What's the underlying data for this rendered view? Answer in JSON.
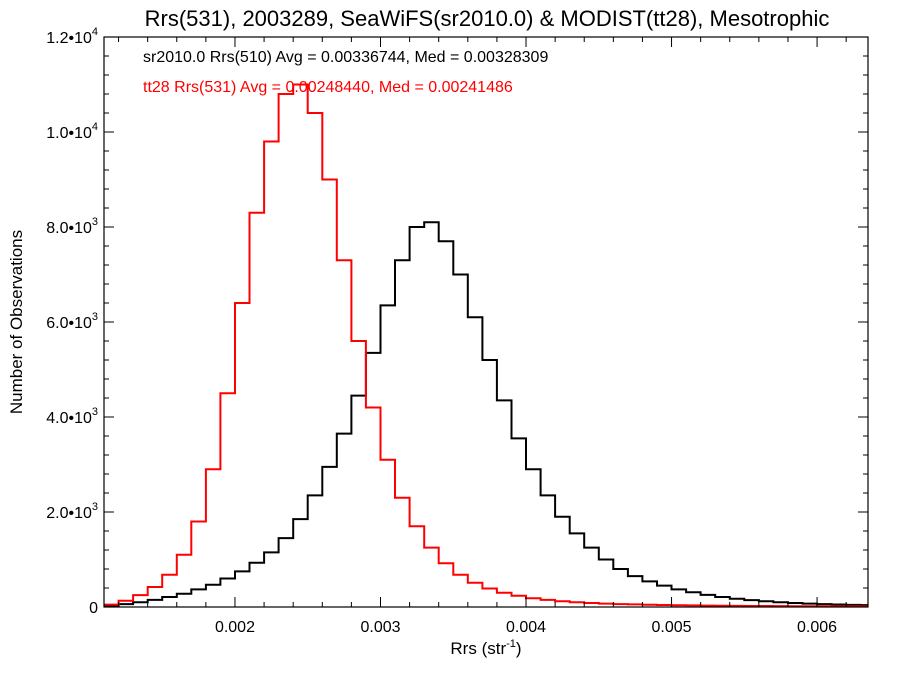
{
  "chart_data": {
    "type": "line",
    "title": "Rrs(531), 2003289, SeaWiFS(sr2010.0) & MODIST(tt28), Mesotrophic",
    "xlabel": "Rrs (str",
    "xlabel_sup": "-1",
    "xlabel_end": ")",
    "ylabel": "Number of Observations",
    "xlim": [
      0.0011,
      0.00635
    ],
    "ylim": [
      0,
      12000
    ],
    "x_ticks": [
      0.002,
      0.003,
      0.004,
      0.005,
      0.006
    ],
    "x_tick_labels": [
      "0.002",
      "0.003",
      "0.004",
      "0.005",
      "0.006"
    ],
    "y_ticks": [
      {
        "value": 0,
        "mantissa": "0",
        "exp": ""
      },
      {
        "value": 2000,
        "mantissa": "2.0•10",
        "exp": "3"
      },
      {
        "value": 4000,
        "mantissa": "4.0•10",
        "exp": "3"
      },
      {
        "value": 6000,
        "mantissa": "6.0•10",
        "exp": "3"
      },
      {
        "value": 8000,
        "mantissa": "8.0•10",
        "exp": "3"
      },
      {
        "value": 10000,
        "mantissa": "1.0•10",
        "exp": "4"
      },
      {
        "value": 12000,
        "mantissa": "1.2•10",
        "exp": "4"
      }
    ],
    "grid": false,
    "annotations": [
      {
        "text": "sr2010.0 Rrs(510) Avg = 0.00336744, Med = 0.00328309",
        "color": "#000000"
      },
      {
        "text": "tt28 Rrs(531) Avg = 0.00248440, Med = 0.00241486",
        "color": "#ff0000"
      }
    ],
    "series": [
      {
        "color": "#000000",
        "x": [
          0.0011,
          0.0012,
          0.0013,
          0.0014,
          0.0015,
          0.0016,
          0.0017,
          0.0018,
          0.0019,
          0.002,
          0.0021,
          0.0022,
          0.0023,
          0.0024,
          0.0025,
          0.0026,
          0.0027,
          0.0028,
          0.0029,
          0.003,
          0.0031,
          0.0032,
          0.0033,
          0.0034,
          0.0035,
          0.0036,
          0.0037,
          0.0038,
          0.0039,
          0.004,
          0.0041,
          0.0042,
          0.0043,
          0.0044,
          0.0045,
          0.0046,
          0.0047,
          0.0048,
          0.0049,
          0.005,
          0.0051,
          0.0052,
          0.0053,
          0.0054,
          0.0055,
          0.0056,
          0.0057,
          0.0058,
          0.0059,
          0.006,
          0.0061,
          0.0062,
          0.0063,
          0.00635
        ],
        "y": [
          30,
          60,
          100,
          150,
          210,
          280,
          370,
          470,
          600,
          750,
          930,
          1150,
          1450,
          1850,
          2350,
          2950,
          3650,
          4450,
          5350,
          6350,
          7300,
          8000,
          8100,
          7700,
          7000,
          6100,
          5200,
          4350,
          3550,
          2900,
          2350,
          1900,
          1550,
          1250,
          1000,
          800,
          650,
          540,
          450,
          370,
          310,
          255,
          210,
          175,
          145,
          120,
          100,
          85,
          72,
          60,
          52,
          45,
          40,
          36
        ]
      },
      {
        "color": "#ff0000",
        "x": [
          0.0011,
          0.0012,
          0.0013,
          0.0014,
          0.0015,
          0.0016,
          0.0017,
          0.0018,
          0.0019,
          0.002,
          0.0021,
          0.0022,
          0.0023,
          0.0024,
          0.0025,
          0.0026,
          0.0027,
          0.0028,
          0.0029,
          0.003,
          0.0031,
          0.0032,
          0.0033,
          0.0034,
          0.0035,
          0.0036,
          0.0037,
          0.0038,
          0.0039,
          0.004,
          0.0041,
          0.0042,
          0.0043,
          0.0044,
          0.0045,
          0.0046,
          0.0047,
          0.0048,
          0.0049,
          0.005,
          0.0051,
          0.0052,
          0.0053,
          0.0054,
          0.0055,
          0.0056,
          0.0057,
          0.0058,
          0.0059,
          0.006,
          0.0061,
          0.0062,
          0.0063,
          0.00635
        ],
        "y": [
          50,
          130,
          250,
          420,
          680,
          1100,
          1800,
          2900,
          4500,
          6400,
          8300,
          9800,
          10800,
          11000,
          10400,
          9000,
          7300,
          5600,
          4200,
          3100,
          2300,
          1700,
          1250,
          920,
          680,
          510,
          390,
          300,
          235,
          185,
          150,
          120,
          100,
          84,
          72,
          62,
          54,
          47,
          42,
          37,
          33,
          30,
          27,
          24,
          22,
          20,
          18,
          16,
          15,
          14,
          13,
          12,
          11,
          10
        ]
      }
    ]
  }
}
